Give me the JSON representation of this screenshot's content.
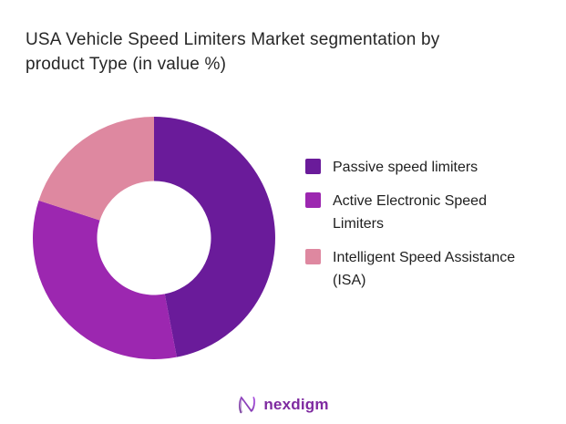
{
  "title": {
    "line1": "USA Vehicle Speed Limiters Market segmentation by",
    "line2": "product Type (in value %)",
    "full": "USA Vehicle Speed Limiters Market segmentation by product Type (in value %)"
  },
  "chart_data": {
    "type": "pie",
    "subtype": "donut",
    "title": "USA Vehicle Speed Limiters Market segmentation by product Type (in value %)",
    "unit": "% of market value",
    "labels": [
      "Passive speed limiters",
      "Active Electronic Speed Limiters",
      "Intelligent Speed Assistance (ISA)"
    ],
    "values": [
      47,
      33,
      20
    ],
    "colors": [
      "#6A1B9A",
      "#9C27B0",
      "#DE88A0"
    ],
    "start_angle_deg": 0,
    "direction": "clockwise",
    "inner_radius_ratio": 0.47,
    "legend_position": "right",
    "data_labels_shown": false
  },
  "legend": {
    "items": [
      {
        "label": "Passive speed limiters",
        "color": "#6A1B9A"
      },
      {
        "label": "Active Electronic Speed Limiters",
        "color": "#9C27B0"
      },
      {
        "label": "Intelligent Speed Assistance (ISA)",
        "color": "#DE88A0"
      }
    ]
  },
  "footer": {
    "brand": "nexdigm",
    "logo_icon": "nexdigm-n-wave-icon",
    "brand_color": "#7E2AA0",
    "logo_gradient": [
      "#6A2C91",
      "#A94FE0"
    ]
  }
}
